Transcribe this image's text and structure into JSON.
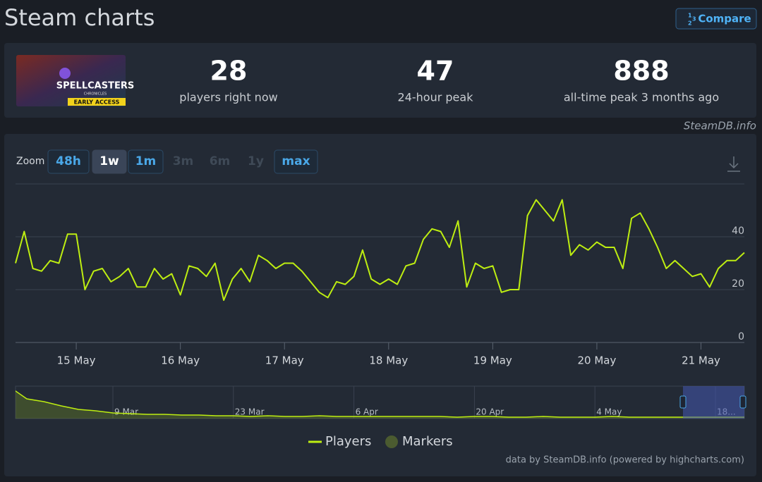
{
  "header": {
    "title": "Steam charts",
    "compare_button": "Compare"
  },
  "game_image": {
    "title": "SPELLCASTERS",
    "subtitle": "CHRONICLES",
    "badge": "EARLY ACCESS"
  },
  "stats": [
    {
      "value": 28,
      "label": "players right now"
    },
    {
      "value": 47,
      "label": "24-hour peak"
    },
    {
      "value": 888,
      "label": "all-time peak 3 months ago"
    }
  ],
  "watermark": "SteamDB.info",
  "zoom": {
    "label": "Zoom",
    "buttons": [
      "48h",
      "1w",
      "1m",
      "3m",
      "6m",
      "1y",
      "max"
    ],
    "active": 1,
    "disabled": [
      3,
      4,
      5
    ]
  },
  "chart_data": [
    {
      "type": "line",
      "categories": [
        null,
        null,
        null,
        null,
        null,
        null,
        null,
        "15 May",
        null,
        null,
        null,
        null,
        null,
        null,
        null,
        null,
        null,
        null,
        null,
        "16 May",
        null,
        null,
        null,
        null,
        null,
        null,
        null,
        null,
        null,
        null,
        null,
        "17 May",
        null,
        null,
        null,
        null,
        null,
        null,
        null,
        null,
        null,
        null,
        null,
        "18 May",
        null,
        null,
        null,
        null,
        null,
        null,
        null,
        null,
        null,
        null,
        null,
        "19 May",
        null,
        null,
        null,
        null,
        null,
        null,
        null,
        null,
        null,
        null,
        null,
        "20 May",
        null,
        null,
        null,
        null,
        null,
        null,
        null,
        null,
        null,
        null,
        null,
        "21 May",
        null,
        null,
        null,
        null,
        null
      ],
      "series": [
        {
          "name": "Players",
          "color": "#beee11",
          "values": [
            30,
            42,
            28,
            27,
            31,
            30,
            41,
            41,
            20,
            27,
            28,
            23,
            25,
            28,
            21,
            21,
            28,
            24,
            26,
            18,
            29,
            28,
            25,
            30,
            16,
            24,
            28,
            23,
            33,
            31,
            28,
            30,
            30,
            27,
            23,
            19,
            17,
            23,
            22,
            25,
            35,
            24,
            22,
            24,
            22,
            29,
            30,
            39,
            43,
            42,
            36,
            46,
            21,
            30,
            28,
            29,
            19,
            20,
            20,
            48,
            54,
            50,
            46,
            54,
            33,
            37,
            35,
            38,
            36,
            36,
            28,
            47,
            49,
            43,
            36,
            28,
            31,
            28,
            25,
            26,
            21,
            28,
            31,
            31,
            34
          ]
        }
      ],
      "markers": {
        "name": "Markers",
        "color": "#4b5b30"
      },
      "ylim": [
        0,
        60
      ],
      "yticks": [
        0,
        20,
        40
      ],
      "grid": true
    },
    {
      "type": "area",
      "categories": [
        null,
        null,
        null,
        null,
        null,
        null,
        "9 Mar",
        null,
        null,
        null,
        null,
        null,
        null,
        "23 Mar",
        null,
        null,
        null,
        null,
        null,
        null,
        "6 Apr",
        null,
        null,
        null,
        null,
        null,
        null,
        "20 Apr",
        null,
        null,
        null,
        null,
        null,
        null,
        "4 May",
        null,
        null,
        null,
        null,
        null,
        null,
        "18...",
        null,
        null
      ],
      "values": [
        880,
        548,
        470,
        352,
        254,
        215,
        157,
        137,
        117,
        117,
        98,
        98,
        78,
        78,
        59,
        78,
        59,
        59,
        78,
        59,
        59,
        59,
        59,
        59,
        59,
        59,
        39,
        59,
        59,
        39,
        39,
        59,
        39,
        39,
        39,
        59,
        39,
        39,
        39,
        39,
        39,
        39,
        39,
        39
      ],
      "color": "#beee11",
      "ylim": [
        0,
        900
      ]
    }
  ],
  "credit": "data by SteamDB.info (powered by highcharts.com)"
}
